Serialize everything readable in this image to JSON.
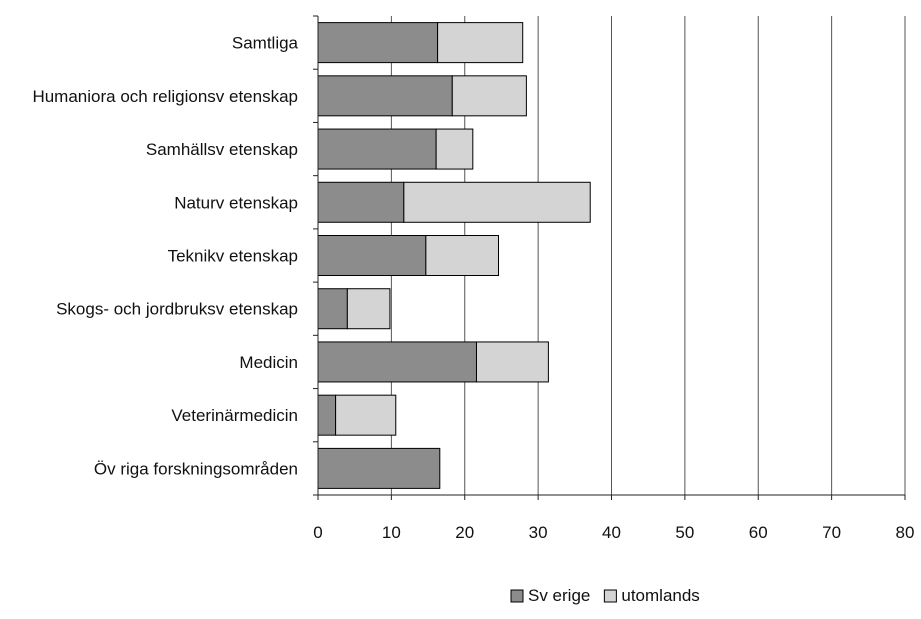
{
  "chart_data": {
    "type": "bar",
    "orientation": "horizontal",
    "stacked": true,
    "categories": [
      "Samtliga",
      "Humaniora och religionsv etenskap",
      "Samhällsv etenskap",
      "Naturv etenskap",
      "Teknikv etenskap",
      "Skogs- och jordbruksv etenskap",
      "Medicin",
      "Veterinärmedicin",
      "Öv riga forskningsområden"
    ],
    "series": [
      {
        "name": "Sv erige",
        "color": "#8c8c8c",
        "values": [
          16.3,
          18.3,
          16.1,
          11.7,
          14.7,
          4.0,
          21.6,
          2.4,
          16.6
        ]
      },
      {
        "name": "utomlands",
        "color": "#d4d4d4",
        "values": [
          11.6,
          10.1,
          5.0,
          25.4,
          9.9,
          5.8,
          9.8,
          8.2,
          0
        ]
      }
    ],
    "xlim": [
      0,
      80
    ],
    "xticks": [
      "0",
      "10",
      "20",
      "30",
      "40",
      "50",
      "60",
      "70",
      "80"
    ],
    "grid": "vertical",
    "legend": "bottom",
    "title": "",
    "xlabel": "",
    "ylabel": ""
  }
}
